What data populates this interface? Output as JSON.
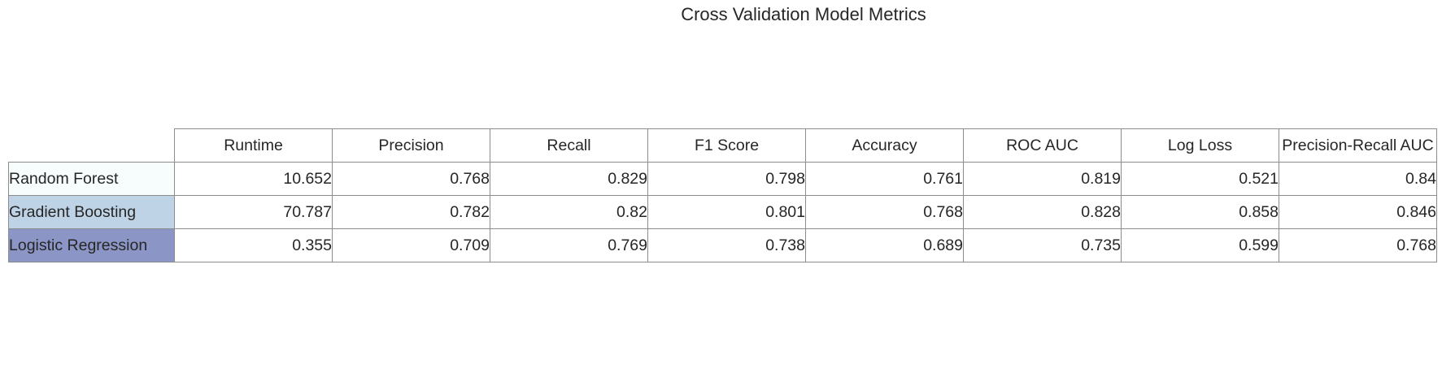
{
  "chart_data": {
    "type": "table",
    "title": "Cross Validation Model Metrics",
    "columns": [
      "Runtime",
      "Precision",
      "Recall",
      "F1 Score",
      "Accuracy",
      "ROC AUC",
      "Log Loss",
      "Precision-Recall AUC"
    ],
    "rows": [
      {
        "label": "Random Forest",
        "color": "#f7fcfd",
        "values": [
          "10.652",
          "0.768",
          "0.829",
          "0.798",
          "0.761",
          "0.819",
          "0.521",
          "0.84"
        ]
      },
      {
        "label": "Gradient Boosting",
        "color": "#bfd3e6",
        "values": [
          "70.787",
          "0.782",
          "0.82",
          "0.801",
          "0.768",
          "0.828",
          "0.858",
          "0.846"
        ]
      },
      {
        "label": "Logistic Regression",
        "color": "#8c96c6",
        "values": [
          "0.355",
          "0.709",
          "0.769",
          "0.738",
          "0.689",
          "0.735",
          "0.599",
          "0.768"
        ]
      }
    ]
  }
}
